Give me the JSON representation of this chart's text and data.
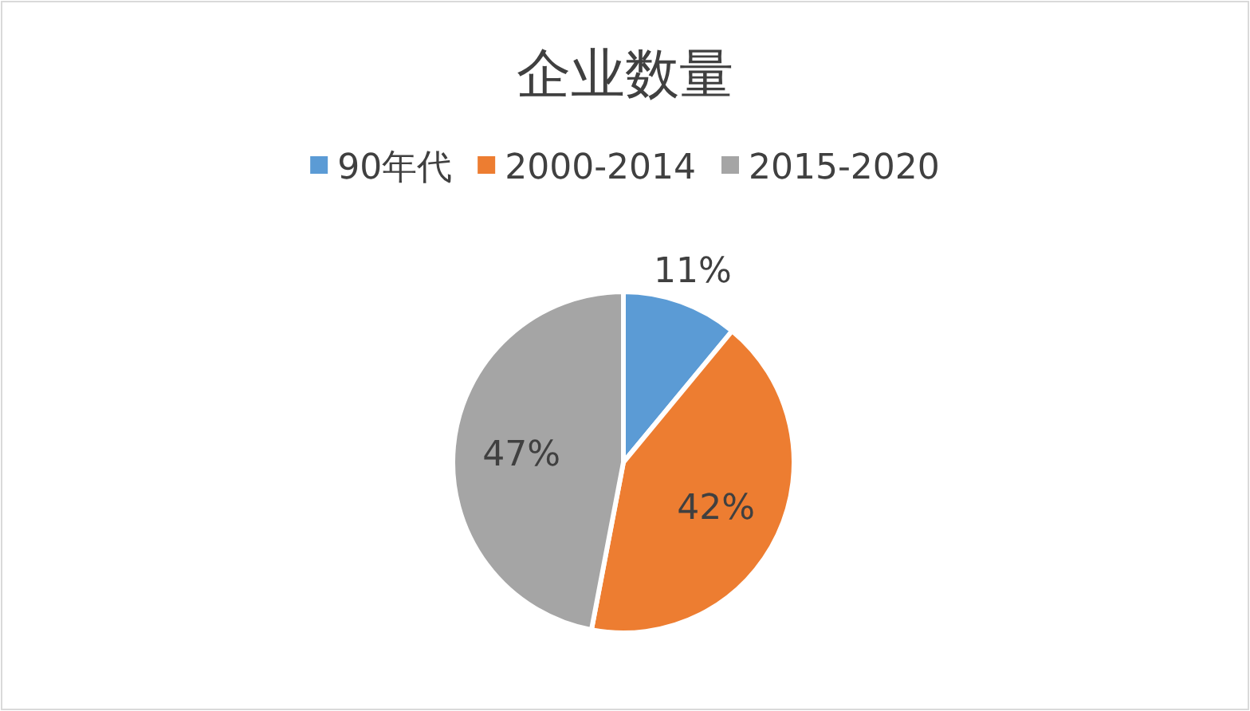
{
  "chart_data": {
    "type": "pie",
    "title": "企业数量",
    "categories": [
      "90年代",
      "2000-2014",
      "2015-2020"
    ],
    "values": [
      11,
      42,
      47
    ],
    "colors": [
      "#5b9bd5",
      "#ed7d31",
      "#a5a5a5"
    ],
    "value_labels": [
      "11%",
      "42%",
      "47%"
    ],
    "legend": "top"
  }
}
